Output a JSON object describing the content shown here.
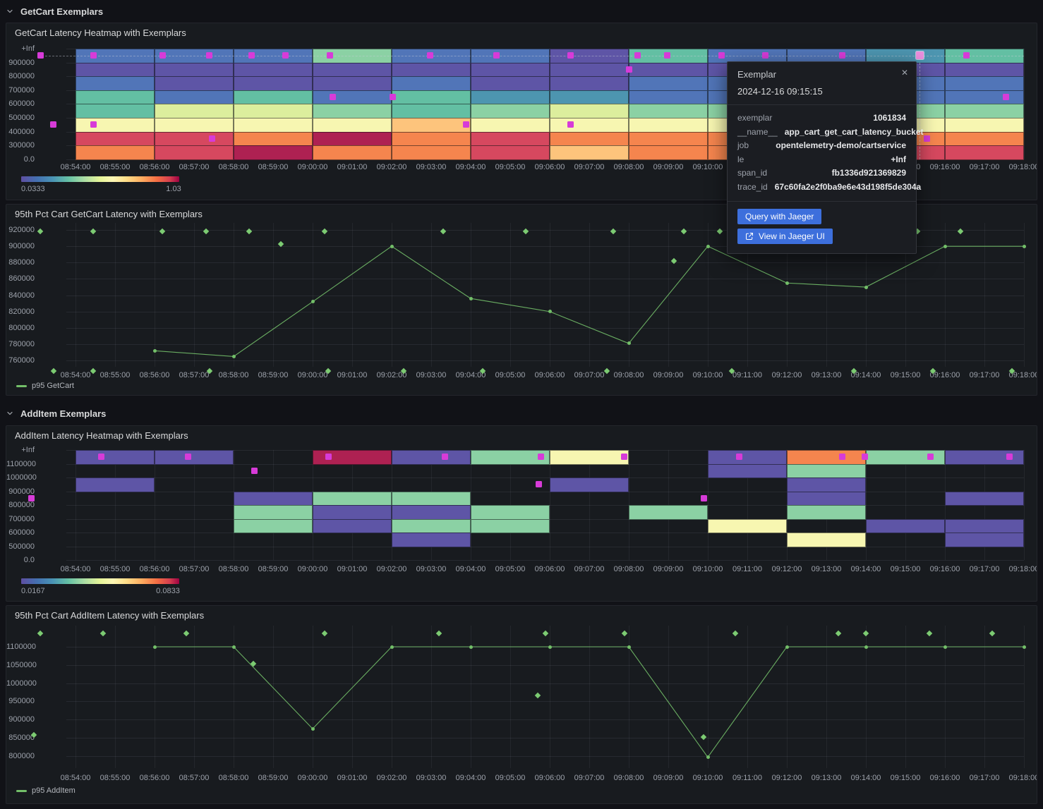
{
  "sections": {
    "getcart": {
      "title": "GetCart Exemplars"
    },
    "additem": {
      "title": "AddItem Exemplars"
    }
  },
  "panels": {
    "getcart_heatmap": {
      "title": "GetCart Latency Heatmap with Exemplars"
    },
    "getcart_line": {
      "title": "95th Pct Cart GetCart Latency with Exemplars",
      "legend": "p95 GetCart"
    },
    "additem_heatmap": {
      "title": "AddItem Latency Heatmap with Exemplars"
    },
    "additem_line": {
      "title": "95th Pct Cart AddItem Latency with Exemplars",
      "legend": "p95 AddItem"
    }
  },
  "tooltip": {
    "title": "Exemplar",
    "close_icon": "✕",
    "timestamp": "2024-12-16 09:15:15",
    "fields": [
      {
        "label": "exemplar",
        "value": "1061834"
      },
      {
        "label": "__name__",
        "value": "app_cart_get_cart_latency_bucket"
      },
      {
        "label": "job",
        "value": "opentelemetry-demo/cartservice"
      },
      {
        "label": "le",
        "value": "+Inf"
      },
      {
        "label": "span_id",
        "value": "fb1336d921369829"
      },
      {
        "label": "trace_id",
        "value": "67c60fa2e2f0ba9e6e43d198f5de304a"
      }
    ],
    "buttons": [
      {
        "label": "Query with Jaeger"
      },
      {
        "label": "View in Jaeger UI",
        "icon": "external-link-icon"
      }
    ]
  },
  "colors": {
    "accent_blue": "#3d6fdc",
    "line_green": "#73bf69",
    "exemplar_magenta": "#d73bd8",
    "exemplar_highlight": "#eb8fdf",
    "panel_bg": "#181b1f",
    "page_bg": "#111217"
  },
  "heatmap_palette": {
    "purple": "#5e55a6",
    "blue": "#5175b8",
    "steel": "#4d95b0",
    "teal": "#63bfa3",
    "green": "#8bd1a4",
    "palegreen": "#dcee9d",
    "paleyellow": "#f7f6b1",
    "peach": "#fdc47c",
    "orange": "#f5854e",
    "red": "#d6485f",
    "crimson": "#ae2152"
  },
  "x_axis": {
    "ticks": [
      "08:54:00",
      "08:55:00",
      "08:56:00",
      "08:57:00",
      "08:58:00",
      "08:59:00",
      "09:00:00",
      "09:01:00",
      "09:02:00",
      "09:03:00",
      "09:04:00",
      "09:05:00",
      "09:06:00",
      "09:07:00",
      "09:08:00",
      "09:09:00",
      "09:10:00",
      "09:11:00",
      "09:12:00",
      "09:13:00",
      "09:14:00",
      "09:15:00",
      "09:16:00",
      "09:17:00",
      "09:18:00"
    ]
  },
  "chart_data": [
    {
      "id": "getcart_heatmap",
      "type": "heatmap",
      "title": "GetCart Latency Heatmap with Exemplars",
      "bucket_minutes": 2,
      "y_labels": [
        "+Inf",
        "900000",
        "800000",
        "700000",
        "600000",
        "500000",
        "400000",
        "300000",
        "0.0"
      ],
      "color_scale": {
        "min": "0.0333",
        "max": "1.03"
      },
      "dashed_guideline_row": 0,
      "columns": [
        {
          "t": "08:54",
          "rows": [
            "blue",
            "purple",
            "blue",
            "teal",
            "teal",
            "paleyellow",
            "red",
            "orange"
          ]
        },
        {
          "t": "08:56",
          "rows": [
            "blue",
            "purple",
            "purple",
            "blue",
            "palegreen",
            "paleyellow",
            "red",
            "red"
          ]
        },
        {
          "t": "08:58",
          "rows": [
            "blue",
            "purple",
            "purple",
            "teal",
            "palegreen",
            "paleyellow",
            "orange",
            "crimson"
          ]
        },
        {
          "t": "09:00",
          "rows": [
            "green",
            "purple",
            "purple",
            "blue",
            "green",
            "paleyellow",
            "crimson",
            "orange"
          ]
        },
        {
          "t": "09:02",
          "rows": [
            "blue",
            "purple",
            "blue",
            "teal",
            "teal",
            "peach",
            "orange",
            "orange"
          ]
        },
        {
          "t": "09:04",
          "rows": [
            "blue",
            "purple",
            "purple",
            "steel",
            "green",
            "paleyellow",
            "red",
            "red"
          ]
        },
        {
          "t": "09:06",
          "rows": [
            "purple",
            "purple",
            "purple",
            "steel",
            "palegreen",
            "paleyellow",
            "orange",
            "peach"
          ]
        },
        {
          "t": "09:08",
          "rows": [
            "teal",
            "purple",
            "blue",
            "blue",
            "green",
            "paleyellow",
            "orange",
            "orange"
          ]
        },
        {
          "t": "09:10",
          "rows": [
            "blue",
            "purple",
            "blue",
            "blue",
            "green",
            "paleyellow",
            "orange",
            "orange"
          ]
        },
        {
          "t": "09:12",
          "rows": [
            "blue",
            "purple",
            "purple",
            "blue",
            "green",
            "paleyellow",
            "orange",
            "red"
          ]
        },
        {
          "t": "09:14",
          "rows": [
            "steel",
            "purple",
            "blue",
            "blue",
            "green",
            "paleyellow",
            "orange",
            "red"
          ]
        },
        {
          "t": "09:16",
          "rows": [
            "teal",
            "purple",
            "blue",
            "blue",
            "green",
            "paleyellow",
            "orange",
            "red"
          ]
        }
      ],
      "exemplars": [
        {
          "m": -0.89,
          "row": 0
        },
        {
          "m": 0.45,
          "row": 0
        },
        {
          "m": 2.21,
          "row": 0
        },
        {
          "m": 3.38,
          "row": 0
        },
        {
          "m": 4.45,
          "row": 0
        },
        {
          "m": 5.32,
          "row": 0
        },
        {
          "m": 6.43,
          "row": 0
        },
        {
          "m": 8.98,
          "row": 0
        },
        {
          "m": 10.66,
          "row": 0
        },
        {
          "m": 12.52,
          "row": 0
        },
        {
          "m": 14.23,
          "row": 0
        },
        {
          "m": 14.98,
          "row": 0
        },
        {
          "m": 16.34,
          "row": 0
        },
        {
          "m": 17.46,
          "row": 0
        },
        {
          "m": 19.41,
          "row": 0
        },
        {
          "m": 21.36,
          "row": 0,
          "highlighted": true
        },
        {
          "m": 22.54,
          "row": 0
        },
        {
          "m": 14.0,
          "row": 1
        },
        {
          "m": 6.5,
          "row": 3
        },
        {
          "m": 8.02,
          "row": 3
        },
        {
          "m": 23.54,
          "row": 3
        },
        {
          "m": -0.57,
          "row": 5
        },
        {
          "m": 0.45,
          "row": 5
        },
        {
          "m": 9.88,
          "row": 5
        },
        {
          "m": 12.52,
          "row": 5
        },
        {
          "m": 3.46,
          "row": 6
        },
        {
          "m": 21.54,
          "row": 6
        }
      ]
    },
    {
      "id": "getcart_line",
      "type": "line",
      "title": "95th Pct Cart GetCart Latency with Exemplars",
      "xlabel": "",
      "ylabel": "",
      "y_ticks": [
        920000,
        900000,
        880000,
        860000,
        840000,
        820000,
        800000,
        780000,
        760000
      ],
      "series": [
        {
          "name": "p95 GetCart",
          "color": "#73bf69",
          "points": [
            [
              "08:56",
              772000
            ],
            [
              "08:58",
              765000
            ],
            [
              "09:00",
              832000
            ],
            [
              "09:02",
              900000
            ],
            [
              "09:04",
              836000
            ],
            [
              "09:06",
              820000
            ],
            [
              "09:08",
              781000
            ],
            [
              "09:10",
              900000
            ],
            [
              "09:12",
              855000
            ],
            [
              "09:14",
              850000
            ],
            [
              "09:16",
              900000
            ],
            [
              "09:18",
              900000
            ]
          ]
        }
      ],
      "exemplars": [
        {
          "m": -0.9,
          "v": 918000
        },
        {
          "m": 0.45,
          "v": 918000
        },
        {
          "m": 2.2,
          "v": 918000
        },
        {
          "m": 3.3,
          "v": 918000
        },
        {
          "m": 4.4,
          "v": 918000
        },
        {
          "m": 5.2,
          "v": 903000
        },
        {
          "m": 6.3,
          "v": 918000
        },
        {
          "m": 9.3,
          "v": 918000
        },
        {
          "m": 11.4,
          "v": 918000
        },
        {
          "m": 13.6,
          "v": 918000
        },
        {
          "m": 15.15,
          "v": 882000
        },
        {
          "m": 15.4,
          "v": 918000
        },
        {
          "m": 16.3,
          "v": 918000
        },
        {
          "m": 21.3,
          "v": 918000
        },
        {
          "m": 22.4,
          "v": 918000
        },
        {
          "m": -0.55,
          "v": 747000
        },
        {
          "m": 0.45,
          "v": 747000
        },
        {
          "m": 3.4,
          "v": 747000
        },
        {
          "m": 6.4,
          "v": 747000
        },
        {
          "m": 8.3,
          "v": 747000
        },
        {
          "m": 10.3,
          "v": 747000
        },
        {
          "m": 13.45,
          "v": 747000
        },
        {
          "m": 16.6,
          "v": 747000
        },
        {
          "m": 19.7,
          "v": 747000
        },
        {
          "m": 21.7,
          "v": 747000
        },
        {
          "m": 23.7,
          "v": 747000
        }
      ]
    },
    {
      "id": "additem_heatmap",
      "type": "heatmap",
      "title": "AddItem Latency Heatmap with Exemplars",
      "bucket_minutes": 2,
      "y_labels": [
        "+Inf",
        "1100000",
        "1000000",
        "900000",
        "800000",
        "700000",
        "600000",
        "500000",
        "0.0"
      ],
      "color_scale": {
        "min": "0.0167",
        "max": "0.0833"
      },
      "dashed_guideline_row": null,
      "columns": [
        {
          "t": "08:54",
          "rows": [
            "purple",
            null,
            "purple",
            null,
            null,
            null,
            null,
            null
          ]
        },
        {
          "t": "08:56",
          "rows": [
            "purple",
            null,
            null,
            null,
            null,
            null,
            null,
            null
          ]
        },
        {
          "t": "08:58",
          "rows": [
            null,
            null,
            null,
            "purple",
            "green",
            "green",
            null,
            null
          ]
        },
        {
          "t": "09:00",
          "rows": [
            "crimson",
            null,
            null,
            "green",
            "purple",
            "purple",
            null,
            null
          ]
        },
        {
          "t": "09:02",
          "rows": [
            "purple",
            null,
            null,
            "green",
            "purple",
            "green",
            "purple",
            null
          ]
        },
        {
          "t": "09:04",
          "rows": [
            "green",
            null,
            null,
            null,
            "green",
            "green",
            null,
            null
          ]
        },
        {
          "t": "09:06",
          "rows": [
            "paleyellow",
            null,
            "purple",
            null,
            null,
            null,
            null,
            null
          ]
        },
        {
          "t": "09:08",
          "rows": [
            null,
            null,
            null,
            null,
            "green",
            null,
            null,
            null
          ]
        },
        {
          "t": "09:10",
          "rows": [
            "purple",
            "purple",
            null,
            null,
            null,
            "paleyellow",
            null,
            null
          ]
        },
        {
          "t": "09:12",
          "rows": [
            "orange",
            "green",
            "purple",
            "purple",
            "green",
            null,
            "paleyellow",
            null
          ]
        },
        {
          "t": "09:14",
          "rows": [
            "green",
            null,
            null,
            null,
            null,
            "purple",
            null,
            null
          ]
        },
        {
          "t": "09:16",
          "rows": [
            "purple",
            null,
            null,
            "purple",
            null,
            "purple",
            "purple",
            null
          ]
        }
      ],
      "exemplars": [
        {
          "m": 0.66,
          "row": 0
        },
        {
          "m": 2.84,
          "row": 0
        },
        {
          "m": 6.4,
          "row": 0
        },
        {
          "m": 9.34,
          "row": 0
        },
        {
          "m": 11.77,
          "row": 0
        },
        {
          "m": 13.89,
          "row": 0
        },
        {
          "m": 16.8,
          "row": 0
        },
        {
          "m": 19.41,
          "row": 0
        },
        {
          "m": 19.98,
          "row": 0
        },
        {
          "m": 21.64,
          "row": 0
        },
        {
          "m": 23.64,
          "row": 0
        },
        {
          "m": 4.52,
          "row": 1
        },
        {
          "m": 11.72,
          "row": 2
        },
        {
          "m": -1.11,
          "row": 3
        },
        {
          "m": 15.9,
          "row": 3
        }
      ]
    },
    {
      "id": "additem_line",
      "type": "line",
      "title": "95th Pct Cart AddItem Latency with Exemplars",
      "xlabel": "",
      "ylabel": "",
      "y_ticks": [
        1100000,
        1050000,
        1000000,
        950000,
        900000,
        850000,
        800000
      ],
      "series": [
        {
          "name": "p95 AddItem",
          "color": "#73bf69",
          "points": [
            [
              "08:56",
              1100000
            ],
            [
              "08:58",
              1100000
            ],
            [
              "09:00",
              875000
            ],
            [
              "09:02",
              1100000
            ],
            [
              "09:04",
              1100000
            ],
            [
              "09:06",
              1100000
            ],
            [
              "09:08",
              1100000
            ],
            [
              "09:10",
              797000
            ],
            [
              "09:12",
              1100000
            ],
            [
              "09:14",
              1100000
            ],
            [
              "09:16",
              1100000
            ],
            [
              "09:18",
              1100000
            ]
          ]
        }
      ],
      "exemplars": [
        {
          "m": -0.9,
          "v": 1137000
        },
        {
          "m": 0.7,
          "v": 1137000
        },
        {
          "m": 2.8,
          "v": 1137000
        },
        {
          "m": 6.3,
          "v": 1137000
        },
        {
          "m": 9.2,
          "v": 1137000
        },
        {
          "m": 11.9,
          "v": 1137000
        },
        {
          "m": 13.9,
          "v": 1137000
        },
        {
          "m": 16.7,
          "v": 1137000
        },
        {
          "m": 19.3,
          "v": 1137000
        },
        {
          "m": 20.0,
          "v": 1137000
        },
        {
          "m": 21.6,
          "v": 1137000
        },
        {
          "m": 23.2,
          "v": 1137000
        },
        {
          "m": -1.05,
          "v": 859000
        },
        {
          "m": 4.5,
          "v": 1053000
        },
        {
          "m": 11.7,
          "v": 967000
        },
        {
          "m": 15.9,
          "v": 852000
        }
      ]
    }
  ]
}
